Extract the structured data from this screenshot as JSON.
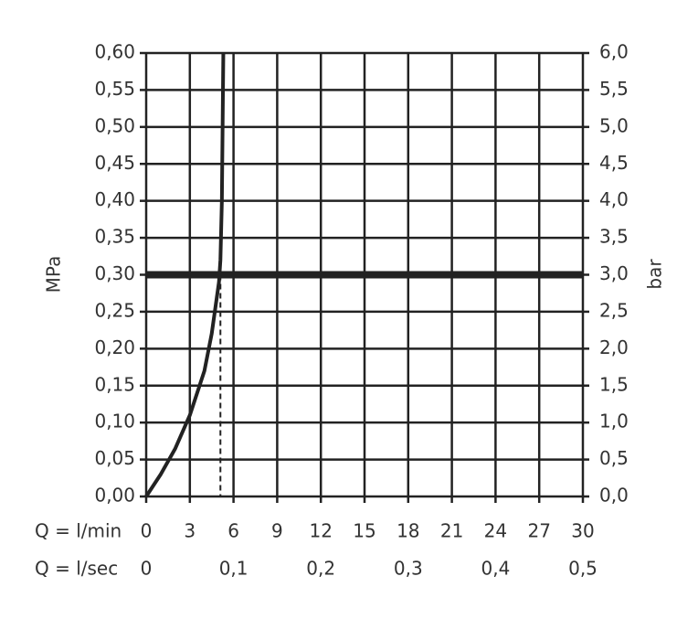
{
  "chart_data": {
    "type": "line",
    "y_label": "MPa",
    "y2_label": "bar",
    "x_label": "Q = l/min",
    "x2_label": "Q = l/sec",
    "xlim": [
      0,
      30
    ],
    "xticks": [
      0,
      3,
      6,
      9,
      12,
      15,
      18,
      21,
      24,
      27,
      30
    ],
    "x2lim": [
      0,
      0.5
    ],
    "x2ticks": [
      0,
      {
        "value": 0.1,
        "label": "0,1"
      },
      {
        "value": 0.2,
        "label": "0,2"
      },
      {
        "value": 0.3,
        "label": "0,3"
      },
      {
        "value": 0.4,
        "label": "0,4"
      },
      {
        "value": 0.5,
        "label": "0,5"
      }
    ],
    "ylim": [
      0,
      0.6
    ],
    "yticks": [
      {
        "value": 0,
        "label": "0,00"
      },
      {
        "value": 0.05,
        "label": "0,05"
      },
      {
        "value": 0.1,
        "label": "0,10"
      },
      {
        "value": 0.15,
        "label": "0,15"
      },
      {
        "value": 0.2,
        "label": "0,20"
      },
      {
        "value": 0.25,
        "label": "0,25"
      },
      {
        "value": 0.3,
        "label": "0,30"
      },
      {
        "value": 0.35,
        "label": "0,35"
      },
      {
        "value": 0.4,
        "label": "0,40"
      },
      {
        "value": 0.45,
        "label": "0,45"
      },
      {
        "value": 0.5,
        "label": "0,50"
      },
      {
        "value": 0.55,
        "label": "0,55"
      },
      {
        "value": 0.6,
        "label": "0,60"
      }
    ],
    "y2lim": [
      0,
      6
    ],
    "y2ticks": [
      {
        "value": 0,
        "label": "0,0"
      },
      {
        "value": 0.5,
        "label": "0,5"
      },
      {
        "value": 1,
        "label": "1,0"
      },
      {
        "value": 1.5,
        "label": "1,5"
      },
      {
        "value": 2,
        "label": "2,0"
      },
      {
        "value": 2.5,
        "label": "2,5"
      },
      {
        "value": 3,
        "label": "3,0"
      },
      {
        "value": 3.5,
        "label": "3,5"
      },
      {
        "value": 4,
        "label": "4,0"
      },
      {
        "value": 4.5,
        "label": "4,5"
      },
      {
        "value": 5,
        "label": "5,0"
      },
      {
        "value": 5.5,
        "label": "5,5"
      },
      {
        "value": 6,
        "label": "6,0"
      }
    ],
    "grid": true,
    "series": [
      {
        "color": "#222222",
        "x": [
          0,
          1,
          2,
          3,
          4,
          4.5,
          5,
          5.1,
          5.2,
          5.25,
          5.3
        ],
        "values": [
          0,
          0.03,
          0.065,
          0.11,
          0.17,
          0.22,
          0.29,
          0.32,
          0.4,
          0.5,
          0.6
        ]
      }
    ],
    "reference_line_y": 0.3,
    "reference_line_x": 5.1
  }
}
